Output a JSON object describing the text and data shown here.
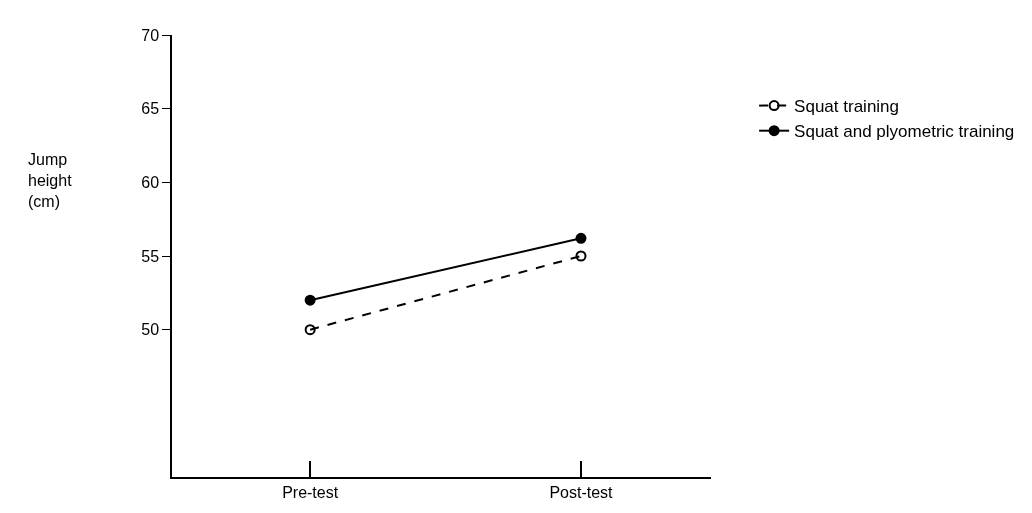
{
  "chart_data": {
    "type": "line",
    "ylabel": "Jump\nheight\n(cm)",
    "categories": [
      "Pre-test",
      "Post-test"
    ],
    "series": [
      {
        "name": "Squat training",
        "color": "#000000",
        "values": [
          50.0,
          55.0
        ],
        "line_style": "dashed",
        "marker": "circle-open"
      },
      {
        "name": "Squat and plyometric training",
        "color": "#000000",
        "values": [
          52.0,
          56.2
        ],
        "line_style": "solid",
        "marker": "circle"
      }
    ],
    "ylim": [
      40,
      70
    ],
    "yticks": [
      50,
      55,
      60,
      65,
      70
    ],
    "legend": "top right"
  }
}
